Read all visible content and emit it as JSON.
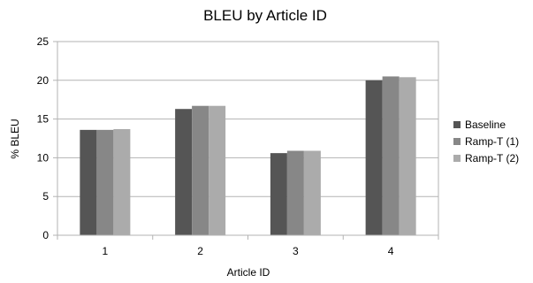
{
  "chart_data": {
    "type": "bar",
    "title": "BLEU by Article ID",
    "xlabel": "Article ID",
    "ylabel": "% BLEU",
    "categories": [
      "1",
      "2",
      "3",
      "4"
    ],
    "ylim": [
      0,
      25
    ],
    "yticks": [
      0,
      5,
      10,
      15,
      20,
      25
    ],
    "grid": true,
    "legend_position": "right",
    "series": [
      {
        "name": "Baseline",
        "values": [
          13.6,
          16.3,
          10.6,
          20.0
        ],
        "color": "#555555"
      },
      {
        "name": "Ramp-T (1)",
        "values": [
          13.6,
          16.7,
          10.9,
          20.5
        ],
        "color": "#878787"
      },
      {
        "name": "Ramp-T (2)",
        "values": [
          13.7,
          16.7,
          10.9,
          20.4
        ],
        "color": "#ababab"
      }
    ]
  }
}
